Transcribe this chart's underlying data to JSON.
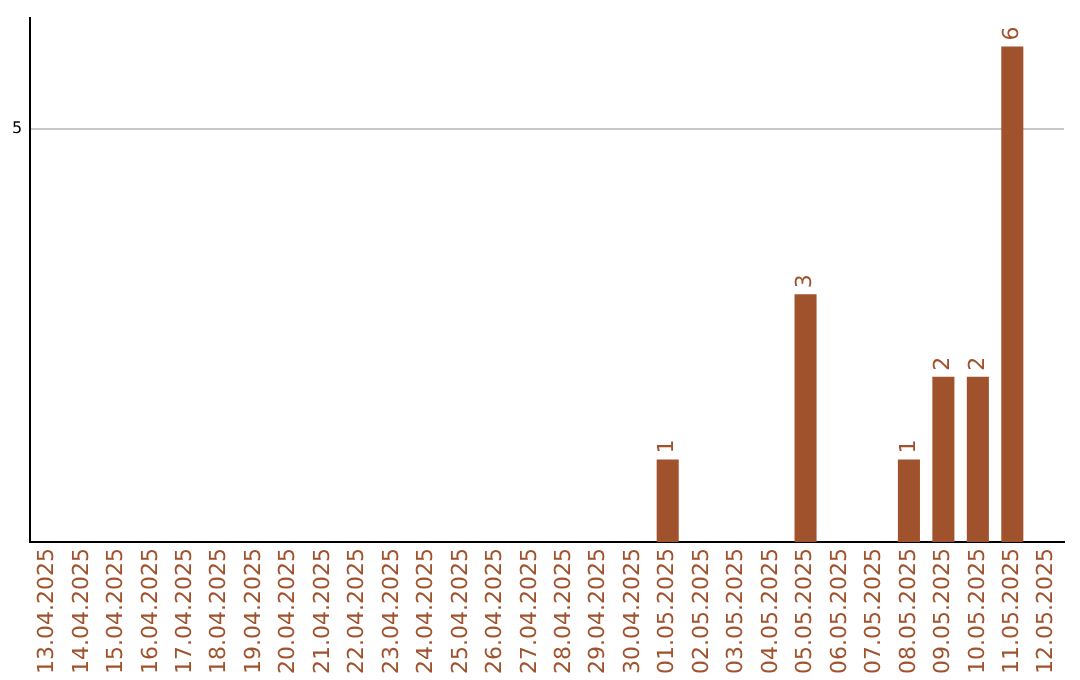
{
  "chart_data": {
    "type": "bar",
    "categories": [
      "13.04.2025",
      "14.04.2025",
      "15.04.2025",
      "16.04.2025",
      "17.04.2025",
      "18.04.2025",
      "19.04.2025",
      "20.04.2025",
      "21.04.2025",
      "22.04.2025",
      "23.04.2025",
      "24.04.2025",
      "25.04.2025",
      "26.04.2025",
      "27.04.2025",
      "28.04.2025",
      "29.04.2025",
      "30.04.2025",
      "01.05.2025",
      "02.05.2025",
      "03.05.2025",
      "04.05.2025",
      "05.05.2025",
      "06.05.2025",
      "07.05.2025",
      "08.05.2025",
      "09.05.2025",
      "10.05.2025",
      "11.05.2025",
      "12.05.2025"
    ],
    "values": [
      null,
      null,
      null,
      null,
      null,
      null,
      null,
      null,
      null,
      null,
      null,
      null,
      null,
      null,
      null,
      null,
      null,
      null,
      1,
      null,
      null,
      null,
      3,
      null,
      null,
      1,
      2,
      2,
      6,
      null
    ],
    "data_labels": true,
    "color": "#a0522d",
    "ylim": [
      0,
      6.35
    ],
    "yticks": [
      5
    ],
    "grid": "y"
  }
}
